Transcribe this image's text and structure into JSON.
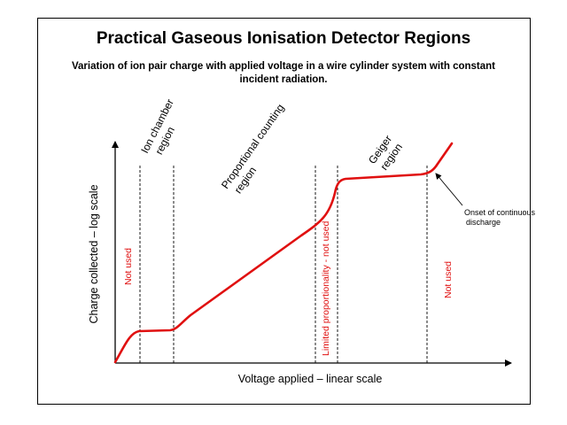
{
  "title": "Practical Gaseous Ionisation Detector Regions",
  "subtitle": "Variation of ion pair charge with applied voltage in a wire cylinder system with constant incident radiation.",
  "axes": {
    "x_label": "Voltage applied – linear scale",
    "y_label": "Charge collected – log scale"
  },
  "regions": {
    "ion_chamber_line1": "Ion chamber",
    "ion_chamber_line2": "region",
    "proportional_line1": "Proportional counting",
    "proportional_line2": "region",
    "geiger_line1": "Geiger",
    "geiger_line2": "region"
  },
  "red_labels": {
    "not_used_left": "Not used",
    "limited_proportionality": "Limited proportionality - not used",
    "not_used_right": "Not used"
  },
  "annotation": {
    "line1": "Onset of continuous",
    "line2": "discharge"
  },
  "colors": {
    "curve": "#e01010",
    "red_text": "#e01010",
    "axes": "#000000",
    "dividers": "#000000"
  }
}
